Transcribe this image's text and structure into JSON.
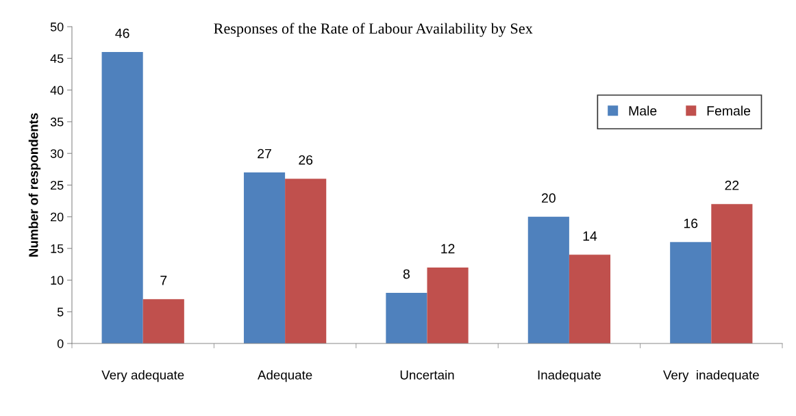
{
  "chart_data": {
    "type": "bar",
    "title": "Responses of the Rate of Labour Availability by Sex",
    "ylabel": "Number of respondents",
    "categories": [
      "Very adequate",
      "Adequate",
      "Uncertain",
      "Inadequate",
      "Very  inadequate"
    ],
    "series": [
      {
        "name": "Male",
        "color": "#4f81bd",
        "values": [
          46,
          27,
          8,
          20,
          16
        ]
      },
      {
        "name": "Female",
        "color": "#c0504d",
        "values": [
          7,
          26,
          12,
          14,
          22
        ]
      }
    ],
    "ylim": [
      0,
      50
    ],
    "yticks": [
      0,
      5,
      10,
      15,
      20,
      25,
      30,
      35,
      40,
      45,
      50
    ],
    "grid": false,
    "legend": "top right",
    "data_labels": true
  }
}
